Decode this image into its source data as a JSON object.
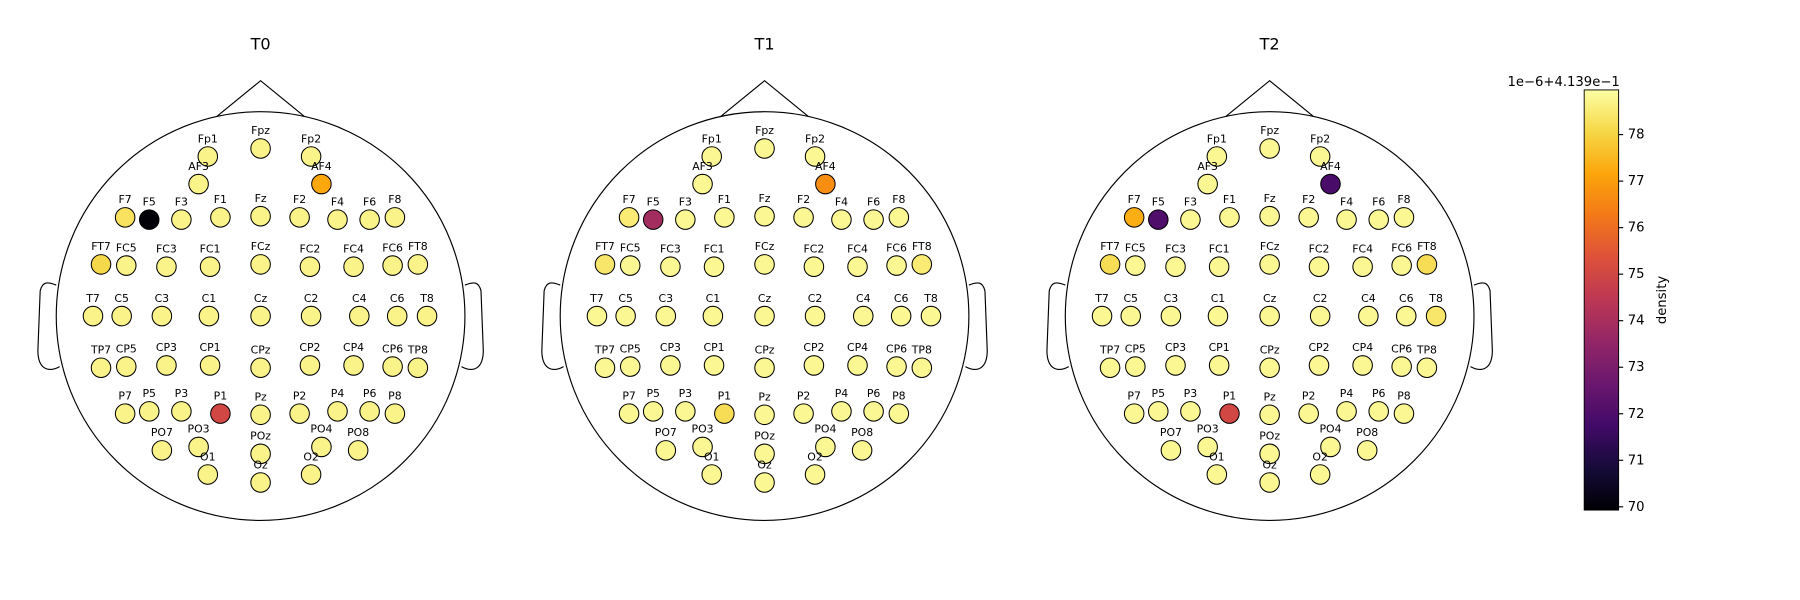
{
  "chart_data": {
    "type": "topomap",
    "channels": [
      "Fp1",
      "Fpz",
      "Fp2",
      "AF3",
      "AF4",
      "F7",
      "F5",
      "F3",
      "F1",
      "Fz",
      "F2",
      "F4",
      "F6",
      "F8",
      "FT7",
      "FC5",
      "FC3",
      "FC1",
      "FCz",
      "FC2",
      "FC4",
      "FC6",
      "FT8",
      "T7",
      "C5",
      "C3",
      "C1",
      "Cz",
      "C2",
      "C4",
      "C6",
      "T8",
      "TP7",
      "CP5",
      "CP3",
      "CP1",
      "CPz",
      "CP2",
      "CP4",
      "CP6",
      "TP8",
      "P7",
      "P5",
      "P3",
      "P1",
      "Pz",
      "P2",
      "P4",
      "P6",
      "P8",
      "PO7",
      "PO3",
      "POz",
      "PO4",
      "PO8",
      "O1",
      "Oz",
      "O2"
    ],
    "panels": [
      {
        "title": "T0",
        "values": [
          78.7,
          78.7,
          78.7,
          78.7,
          77.2,
          78.3,
          70.0,
          78.7,
          78.7,
          78.7,
          78.7,
          78.7,
          78.7,
          78.7,
          78.1,
          78.7,
          78.7,
          78.7,
          78.7,
          78.7,
          78.7,
          78.7,
          78.7,
          78.7,
          78.7,
          78.7,
          78.7,
          78.7,
          78.7,
          78.7,
          78.7,
          78.7,
          78.7,
          78.7,
          78.7,
          78.7,
          78.7,
          78.7,
          78.7,
          78.7,
          78.7,
          78.7,
          78.7,
          78.7,
          75.0,
          78.7,
          78.7,
          78.7,
          78.7,
          78.7,
          78.7,
          78.7,
          78.7,
          78.7,
          78.7,
          78.7,
          78.7,
          78.7
        ]
      },
      {
        "title": "T1",
        "values": [
          78.8,
          78.8,
          78.8,
          78.8,
          76.7,
          78.5,
          73.9,
          78.8,
          78.8,
          78.8,
          78.8,
          78.8,
          78.8,
          78.8,
          78.4,
          78.8,
          78.8,
          78.8,
          78.8,
          78.8,
          78.8,
          78.8,
          78.5,
          78.8,
          78.8,
          78.8,
          78.8,
          78.8,
          78.8,
          78.8,
          78.8,
          78.8,
          78.8,
          78.8,
          78.8,
          78.8,
          78.8,
          78.8,
          78.8,
          78.8,
          78.8,
          78.8,
          78.8,
          78.8,
          78.2,
          78.8,
          78.8,
          78.8,
          78.8,
          78.8,
          78.8,
          78.8,
          78.8,
          78.8,
          78.8,
          78.8,
          78.8,
          78.8
        ]
      },
      {
        "title": "T2",
        "values": [
          78.8,
          78.8,
          78.8,
          78.8,
          71.9,
          77.3,
          72.0,
          78.8,
          78.8,
          78.8,
          78.8,
          78.8,
          78.8,
          78.8,
          78.2,
          78.8,
          78.8,
          78.8,
          78.8,
          78.8,
          78.8,
          78.8,
          78.2,
          78.8,
          78.8,
          78.8,
          78.8,
          78.8,
          78.8,
          78.8,
          78.8,
          78.4,
          78.8,
          78.8,
          78.8,
          78.8,
          78.8,
          78.8,
          78.8,
          78.8,
          78.8,
          78.8,
          78.8,
          78.8,
          75.0,
          78.8,
          78.8,
          78.8,
          78.8,
          78.8,
          78.8,
          78.8,
          78.8,
          78.8,
          78.8,
          78.8,
          78.8,
          78.8
        ]
      }
    ],
    "colormap": "inferno",
    "clim": [
      69.93,
      78.96
    ],
    "cticks": [
      70,
      71,
      72,
      73,
      74,
      75,
      76,
      77,
      78
    ],
    "colorbar_label": "density",
    "colorbar_offset": "1e−6+4.139e−1"
  }
}
